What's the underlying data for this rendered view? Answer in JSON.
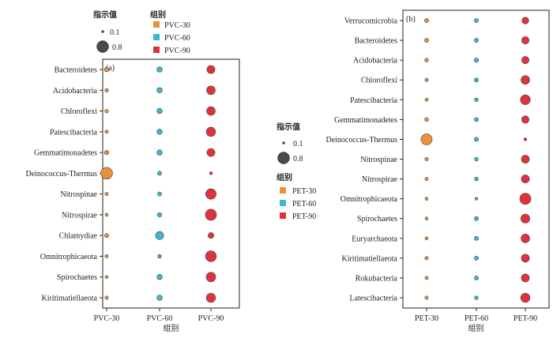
{
  "legend_a": {
    "size_title": "指示值",
    "size_small": "0.1",
    "size_large": "0.8",
    "group_title": "组别",
    "groups": [
      "PVC-30",
      "PVC-60",
      "PVC-90"
    ]
  },
  "legend_b": {
    "size_title": "指示值",
    "size_small": "0.1",
    "size_large": "0.8",
    "group_title": "组别",
    "groups": [
      "PET-30",
      "PET-60",
      "PET-90"
    ]
  },
  "colors": {
    "g30": "#e8913a",
    "g60": "#3db8d3",
    "g90": "#e0323d"
  },
  "chart_data": [
    {
      "type": "scatter",
      "panel_label": "(a)",
      "xlabel": "组别",
      "x_categories": [
        "PVC-30",
        "PVC-60",
        "PVC-90"
      ],
      "y_categories": [
        "Bacteroidetes",
        "Acidobacteria",
        "Chloroflexi",
        "Patescibacteria",
        "Gemmatimonadetes",
        "Deinococcus-Thermus",
        "Nitrospinae",
        "Nitrospirae",
        "Chlamydiae",
        "Omnitrophicaeota",
        "Spirochaetes",
        "Kiritimatiellaeota"
      ],
      "size_label": "指示值",
      "values": [
        [
          0.22,
          0.28,
          0.5
        ],
        [
          0.14,
          0.28,
          0.55
        ],
        [
          0.14,
          0.28,
          0.55
        ],
        [
          0.12,
          0.28,
          0.6
        ],
        [
          0.2,
          0.28,
          0.5
        ],
        [
          0.8,
          0.18,
          0.08
        ],
        [
          0.12,
          0.18,
          0.7
        ],
        [
          0.1,
          0.2,
          0.75
        ],
        [
          0.18,
          0.5,
          0.32
        ],
        [
          0.12,
          0.15,
          0.73
        ],
        [
          0.1,
          0.28,
          0.62
        ],
        [
          0.12,
          0.28,
          0.6
        ]
      ]
    },
    {
      "type": "scatter",
      "panel_label": "(b)",
      "xlabel": "组别",
      "x_categories": [
        "PET-30",
        "PET-60",
        "PET-90"
      ],
      "y_categories": [
        "Verrucomicrobia",
        "Bacteroidetes",
        "Acidobacteria",
        "Chloroflexi",
        "Patescibacteria",
        "Gemmatimonadetes",
        "Deinococcus-Thermus",
        "Nitrospinae",
        "Nitrospirae",
        "Omnitrophicaeota",
        "Spirochaetes",
        "Euryarchaeota",
        "Kiritimatiellaeota",
        "Rokubacteria",
        "Latescibacteria"
      ],
      "size_label": "指示值",
      "values": [
        [
          0.18,
          0.18,
          0.4
        ],
        [
          0.18,
          0.18,
          0.45
        ],
        [
          0.15,
          0.2,
          0.45
        ],
        [
          0.12,
          0.18,
          0.55
        ],
        [
          0.1,
          0.15,
          0.65
        ],
        [
          0.15,
          0.18,
          0.45
        ],
        [
          0.75,
          0.18,
          0.08
        ],
        [
          0.12,
          0.15,
          0.5
        ],
        [
          0.12,
          0.15,
          0.5
        ],
        [
          0.1,
          0.08,
          0.75
        ],
        [
          0.1,
          0.18,
          0.58
        ],
        [
          0.1,
          0.18,
          0.55
        ],
        [
          0.12,
          0.18,
          0.5
        ],
        [
          0.12,
          0.18,
          0.5
        ],
        [
          0.12,
          0.15,
          0.6
        ]
      ]
    }
  ]
}
